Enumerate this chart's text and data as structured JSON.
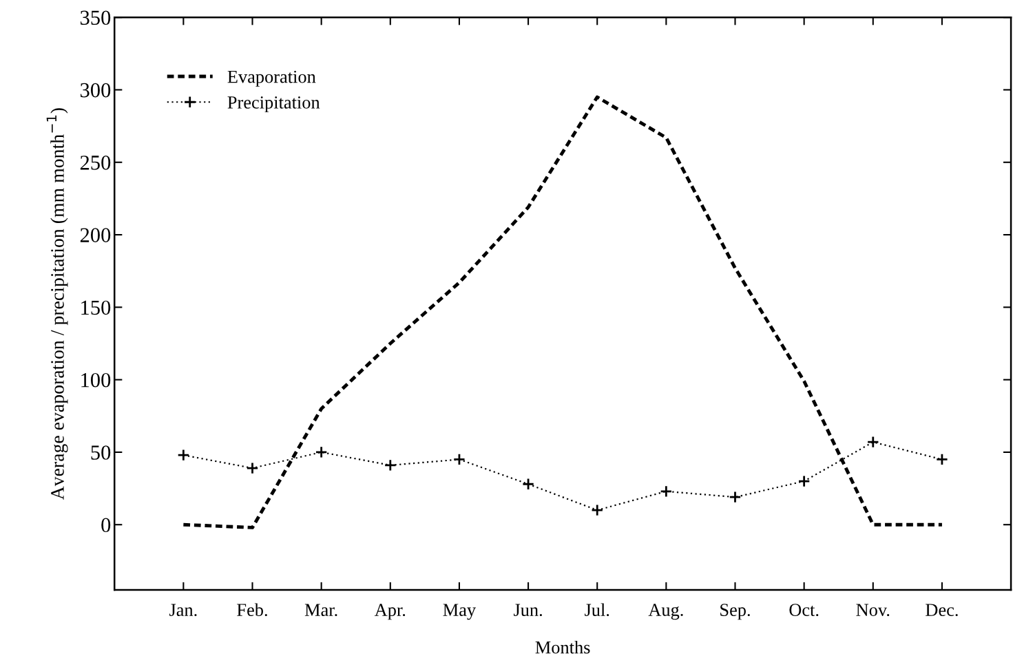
{
  "chart_data": {
    "type": "line",
    "xlabel": "Months",
    "ylabel": "Average evaporation / precipitation (mm month$^{−1}$)",
    "categories": [
      "Jan.",
      "Feb.",
      "Mar.",
      "Apr.",
      "May",
      "Jun.",
      "Jul.",
      "Aug.",
      "Sep.",
      "Oct.",
      "Nov.",
      "Dec."
    ],
    "series": [
      {
        "name": "Evaporation",
        "color": "#000000",
        "line_style": "dashed",
        "marker": "none",
        "values": [
          0,
          -2,
          80,
          125,
          167,
          219,
          295,
          267,
          177,
          99,
          0,
          0
        ]
      },
      {
        "name": "Precipitation",
        "color": "#000000",
        "line_style": "dotted",
        "marker": "cross",
        "values": [
          48,
          39,
          50,
          41,
          45,
          28,
          10,
          23,
          19,
          30,
          57,
          45
        ]
      }
    ],
    "ylim": [
      -45,
      350
    ],
    "yticks": [
      0,
      50,
      100,
      150,
      200,
      250,
      300,
      350
    ],
    "grid": false,
    "legend": "top left"
  }
}
